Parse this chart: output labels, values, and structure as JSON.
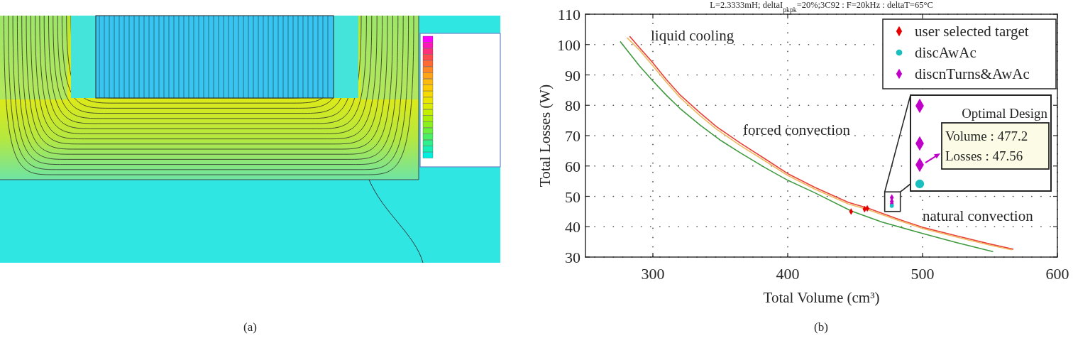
{
  "chart_data": [
    {
      "type": "other",
      "annotations": [
        "(a)"
      ]
    },
    {
      "type": "line",
      "title": "L=2.3333mH; deltaI$_{pkpk}$=20%;3C92 : F=20kHz : deltaT=65°C",
      "xlabel": "Total Volume (cm³)",
      "ylabel": "Total Losses (W)",
      "xlim": [
        250,
        600
      ],
      "xticks": [
        300,
        400,
        500,
        600
      ],
      "ylim": [
        30,
        110
      ],
      "yticks": [
        30,
        40,
        50,
        60,
        70,
        80,
        90,
        100,
        110
      ],
      "grid": true,
      "legend": "top right",
      "series": [
        {
          "type": "line",
          "color": "#e8413a",
          "x": [
            283,
            290,
            300,
            310,
            320,
            335,
            347,
            365,
            383,
            400,
            420,
            445,
            459,
            480,
            500,
            525,
            550,
            567
          ],
          "values": [
            102.6,
            99,
            94,
            88.5,
            83.5,
            77.5,
            73,
            67.5,
            62.4,
            57.5,
            53,
            48,
            46.2,
            42.8,
            39.8,
            37,
            34.3,
            32.6
          ]
        },
        {
          "type": "line",
          "color": "#f2b860",
          "x": [
            281,
            290,
            300,
            310,
            320,
            335,
            347,
            365,
            383,
            400,
            420,
            445,
            459,
            480,
            500,
            525,
            550,
            566
          ],
          "values": [
            102.2,
            98.2,
            93,
            87.6,
            82.6,
            76.6,
            72.2,
            66.7,
            61.7,
            56.9,
            52.4,
            47.5,
            45.7,
            42.4,
            39.4,
            36.6,
            33.9,
            32.4
          ]
        },
        {
          "type": "line",
          "color": "#3f9a3f",
          "x": [
            276,
            290,
            300,
            310,
            320,
            335,
            350,
            365,
            383,
            400,
            420,
            447,
            470,
            500,
            525,
            552
          ],
          "values": [
            100.9,
            93,
            88,
            83.3,
            79,
            73.5,
            68.5,
            64.3,
            59.5,
            55.3,
            51.2,
            45.2,
            41.5,
            37.8,
            34.8,
            31.8
          ]
        },
        {
          "type": "scatter",
          "name": "user selected target",
          "color": "#e60000",
          "marker": "diamond",
          "x": [
            447,
            457,
            459
          ],
          "values": [
            45,
            45.8,
            46
          ]
        },
        {
          "type": "scatter",
          "name": "discAwAc",
          "color": "#19bfbf",
          "marker": "circle",
          "x": [
            477.2
          ],
          "values": [
            46.9
          ]
        },
        {
          "type": "scatter",
          "name": "discnTurns&AwAc",
          "color": "#c000c8",
          "marker": "diamond",
          "x": [
            477.2,
            477.2,
            477.2
          ],
          "values": [
            49.6,
            48.3,
            47.56
          ]
        }
      ],
      "annotations": [
        "liquid cooling",
        "forced convection",
        "natural convection",
        "Optimal Design",
        "Volume : 477.2",
        "Losses : 47.56",
        "(b)"
      ]
    }
  ]
}
